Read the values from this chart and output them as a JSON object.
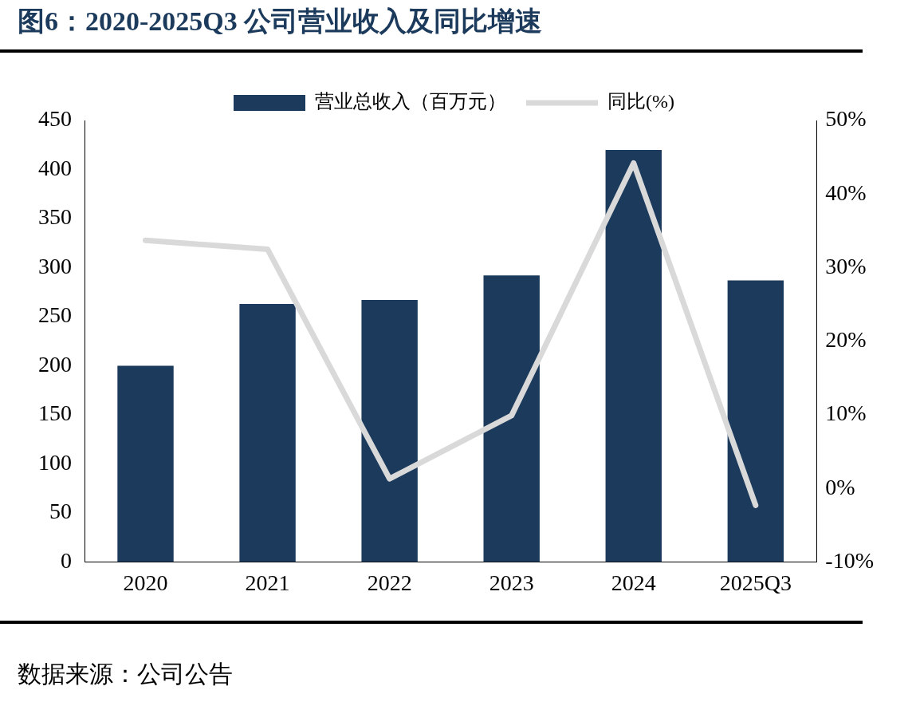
{
  "chart_data": {
    "type": "bar",
    "title": "图6：2020-2025Q3 公司营业收入及同比增速",
    "annotations": [
      "数据来源：公司公告"
    ],
    "categories": [
      "2020",
      "2021",
      "2022",
      "2023",
      "2024",
      "2025Q3"
    ],
    "series": [
      {
        "name": "营业总收入（百万元）",
        "type": "bar",
        "color": "#1b3a5c",
        "values": [
          200,
          263,
          267,
          292,
          420,
          287
        ]
      },
      {
        "name": "同比(%)",
        "type": "line",
        "axis": "y2",
        "color": "#d9d9d9",
        "values": [
          33.7,
          32.5,
          1.3,
          9.9,
          44.2,
          -2.3
        ]
      }
    ],
    "ylim": [
      0,
      450
    ],
    "yticks": [
      0,
      50,
      100,
      150,
      200,
      250,
      300,
      350,
      400,
      450
    ],
    "y2lim": [
      -10,
      50
    ],
    "y2ticks": [
      {
        "value": -10,
        "label": "-10%"
      },
      {
        "value": 0,
        "label": "0%"
      },
      {
        "value": 10,
        "label": "10%"
      },
      {
        "value": 20,
        "label": "20%"
      },
      {
        "value": 30,
        "label": "30%"
      },
      {
        "value": 40,
        "label": "40%"
      },
      {
        "value": 50,
        "label": "50%"
      }
    ],
    "legend": "top",
    "grid": false
  }
}
